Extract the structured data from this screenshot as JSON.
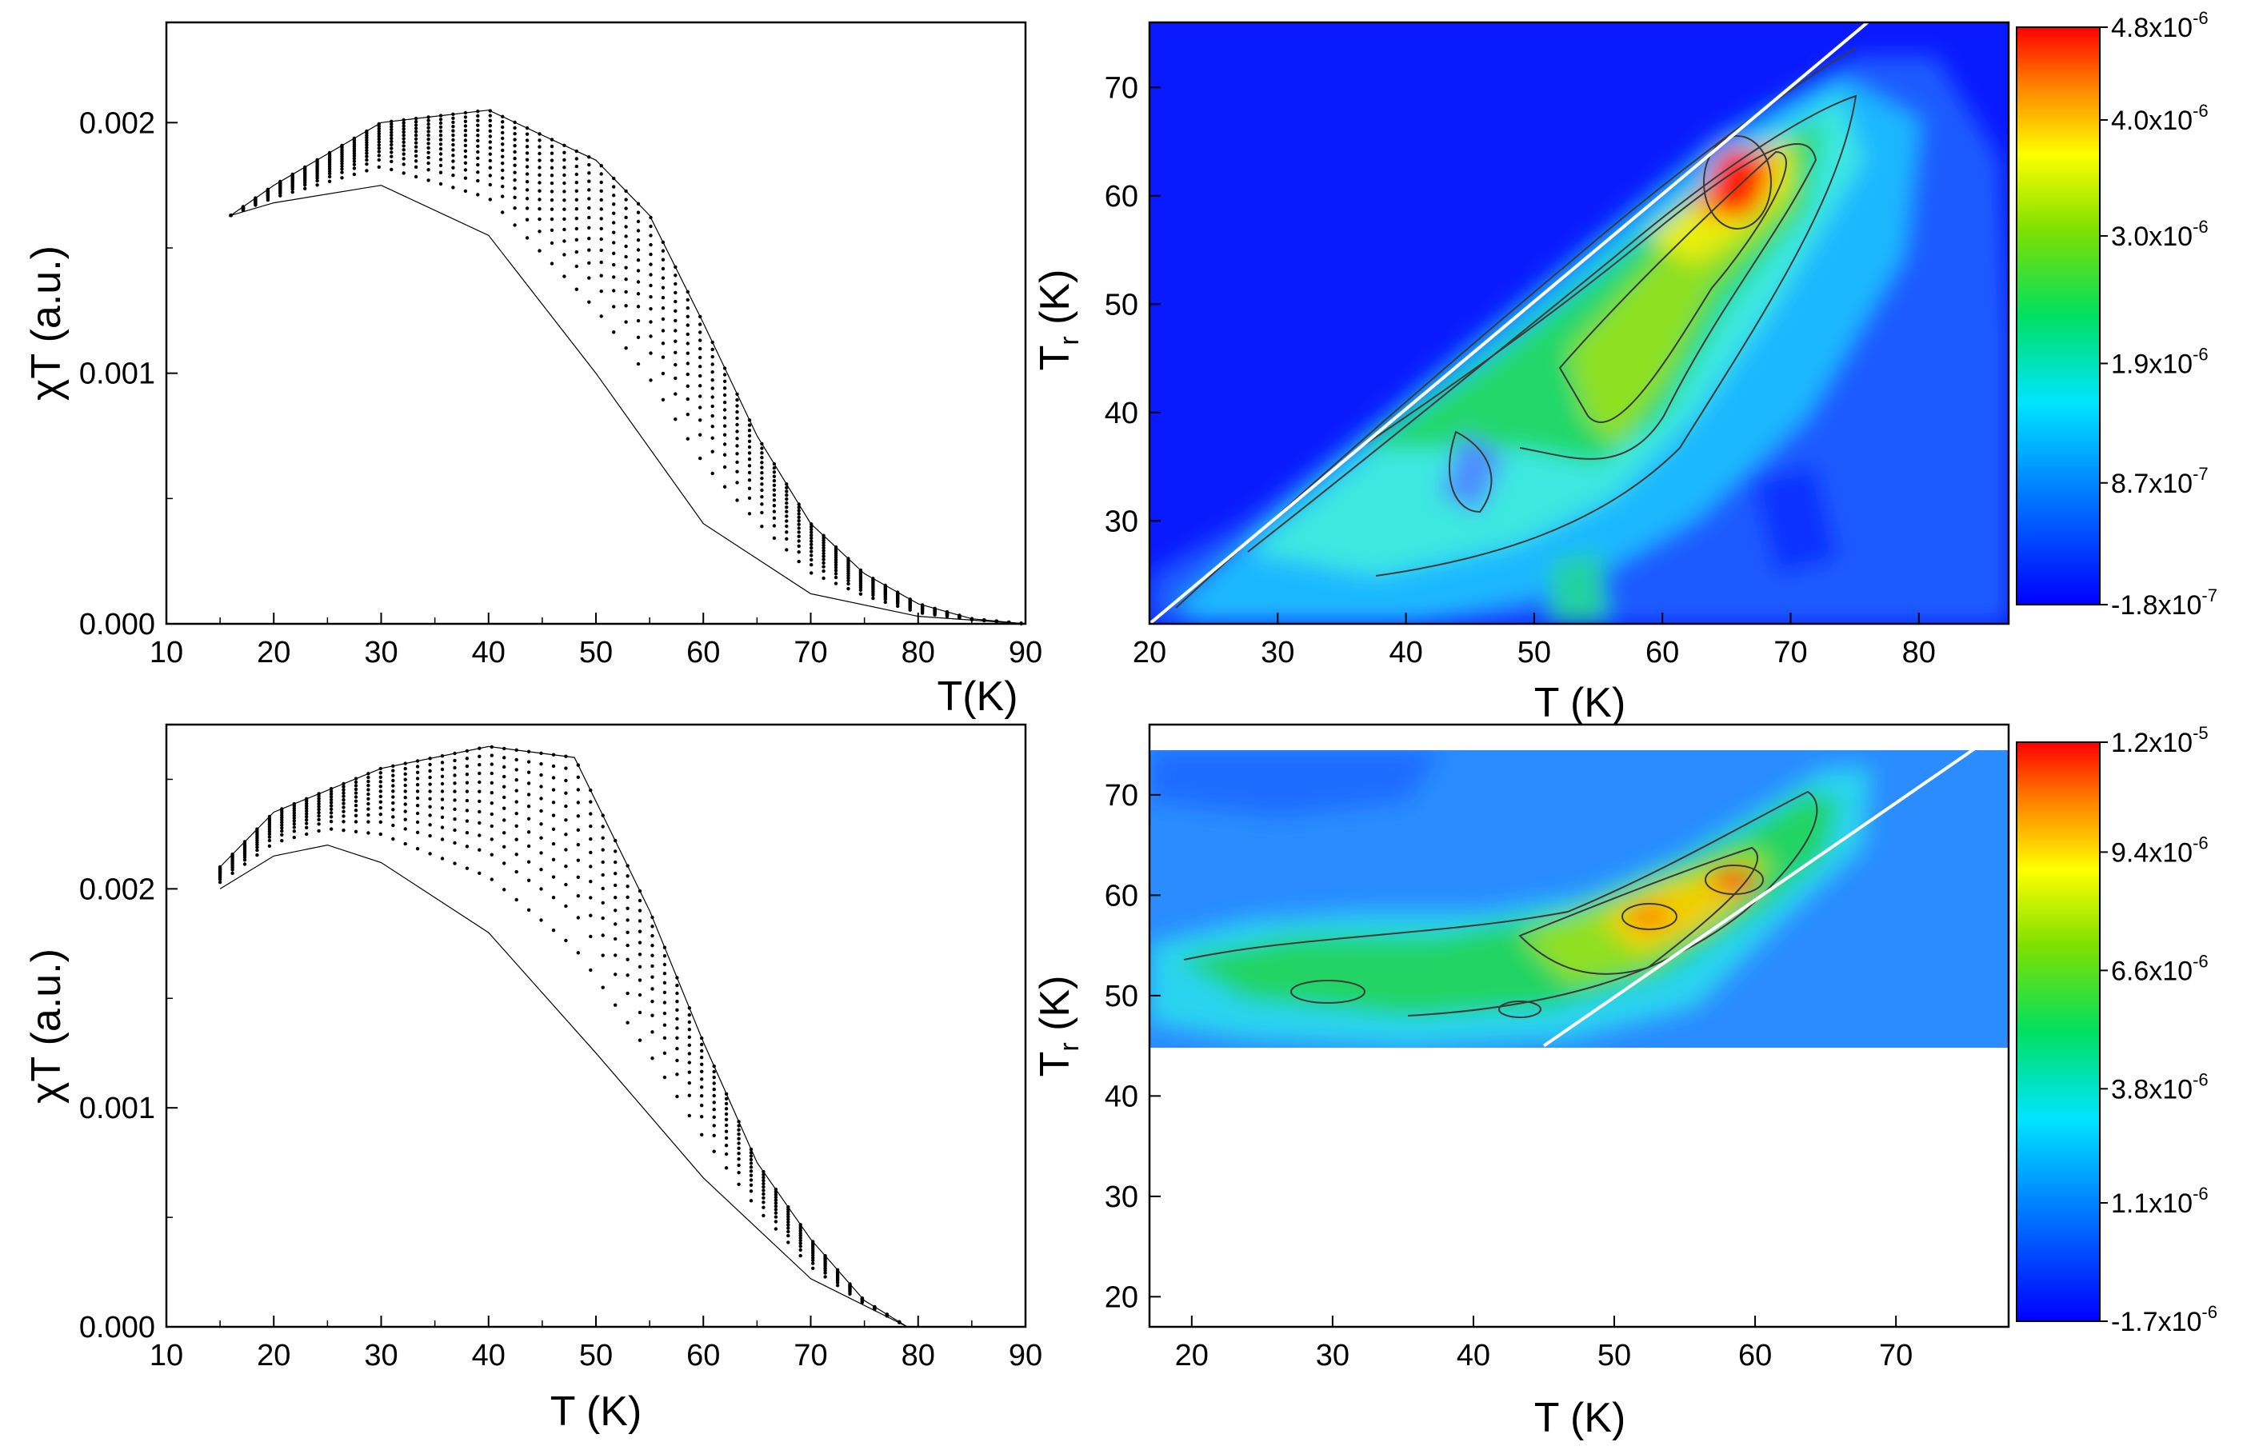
{
  "chart_data": [
    {
      "panel": "top-left",
      "type": "scatter",
      "title": "",
      "xlabel": "T(K)",
      "ylabel": "χT (a.u.)",
      "xlim": [
        10,
        90
      ],
      "ylim": [
        0,
        0.0024
      ],
      "xticks": [
        "10",
        "20",
        "30",
        "40",
        "50",
        "60",
        "70",
        "80",
        "90"
      ],
      "yticks": [
        "0.000",
        "0.001",
        "0.002"
      ],
      "series": [
        {
          "name": "envelope",
          "x": [
            16,
            20,
            30,
            40,
            50,
            55,
            60,
            65,
            70,
            75,
            80,
            85,
            90
          ],
          "y": [
            0.00163,
            0.00175,
            0.002,
            0.00205,
            0.00185,
            0.00163,
            0.0012,
            0.00075,
            0.0004,
            0.0002,
            8e-05,
            2e-05,
            0.0
          ]
        },
        {
          "name": "reference curve",
          "x": [
            16,
            20,
            30,
            40,
            50,
            60,
            70,
            80,
            90
          ],
          "y": [
            0.00163,
            0.00168,
            0.00175,
            0.00155,
            0.001,
            0.0004,
            0.00012,
            3e-05,
            0.0
          ]
        }
      ]
    },
    {
      "panel": "top-right",
      "type": "heatmap",
      "xlabel": "T (K)",
      "ylabel": "T_r (K)",
      "xlim": [
        20,
        87
      ],
      "ylim": [
        20.5,
        76
      ],
      "xticks": [
        "20",
        "30",
        "40",
        "50",
        "60",
        "70",
        "80"
      ],
      "yticks": [
        "30",
        "40",
        "50",
        "60",
        "70"
      ],
      "colorbar_ticks": [
        "4.8x10-6",
        "4.0x10-6",
        "3.0x10-6",
        "1.9x10-6",
        "8.7x10-7",
        "-1.8x10-7"
      ],
      "colorbar_values": [
        4.8e-06,
        4e-06,
        3e-06,
        1.9e-06,
        8.7e-07,
        -1.8e-07
      ],
      "peak": {
        "T": 64,
        "Tr": 61,
        "value": 4.8e-06
      },
      "diagonal_line": {
        "T": [
          20,
          76
        ],
        "Tr": [
          20.5,
          76
        ]
      }
    },
    {
      "panel": "bottom-left",
      "type": "scatter",
      "title": "",
      "xlabel": "T (K)",
      "ylabel": "χT (a.u.)",
      "xlim": [
        10,
        90
      ],
      "ylim": [
        0,
        0.00275
      ],
      "xticks": [
        "10",
        "20",
        "30",
        "40",
        "50",
        "60",
        "70",
        "80",
        "90"
      ],
      "yticks": [
        "0.000",
        "0.001",
        "0.002"
      ],
      "series": [
        {
          "name": "envelope",
          "x": [
            15,
            20,
            30,
            40,
            48,
            55,
            60,
            65,
            70,
            75,
            79
          ],
          "y": [
            0.0021,
            0.00235,
            0.00255,
            0.00265,
            0.0026,
            0.0019,
            0.0013,
            0.00075,
            0.0004,
            0.00012,
            0.0
          ]
        },
        {
          "name": "reference curve",
          "x": [
            15,
            20,
            25,
            30,
            40,
            50,
            60,
            70,
            79
          ],
          "y": [
            0.002,
            0.00215,
            0.0022,
            0.00212,
            0.0018,
            0.00125,
            0.00068,
            0.00022,
            0.0
          ]
        }
      ]
    },
    {
      "panel": "bottom-right",
      "type": "heatmap",
      "xlabel": "T (K)",
      "ylabel": "T_r (K)",
      "xlim": [
        17,
        78
      ],
      "ylim": [
        17,
        77
      ],
      "data_tr_range": [
        45,
        75
      ],
      "xticks": [
        "20",
        "30",
        "40",
        "50",
        "60",
        "70"
      ],
      "yticks": [
        "20",
        "30",
        "40",
        "50",
        "60",
        "70"
      ],
      "colorbar_ticks": [
        "1.2x10-5",
        "9.4x10-6",
        "6.6x10-6",
        "3.8x10-6",
        "1.1x10-6",
        "-1.7x10-6"
      ],
      "colorbar_values": [
        1.2e-05,
        9.4e-06,
        6.6e-06,
        3.8e-06,
        1.1e-06,
        -1.7e-06
      ],
      "peak": {
        "T": 58,
        "Tr": 62,
        "value": 1.2e-05
      },
      "diagonal_line": {
        "T": [
          45,
          76
        ],
        "Tr": [
          45,
          75
        ]
      }
    }
  ]
}
